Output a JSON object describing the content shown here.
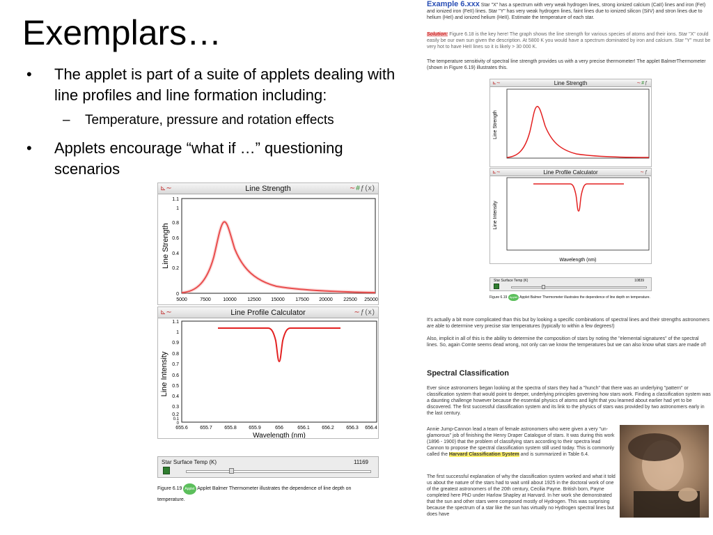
{
  "slide": {
    "title": "Exemplars…",
    "bullets": [
      "The applet is part of a suite of applets dealing with line profiles and line formation including:",
      "Applets encourage “what if …” questioning scenarios"
    ],
    "sub_bullet": "Temperature, pressure and rotation effects"
  },
  "applet_large": {
    "line_strength": {
      "title": "Line Strength",
      "ylabel": "Line Strength",
      "yticks": [
        "1.1",
        "1",
        "0.8",
        "0.6",
        "0.4",
        "0.2",
        "0"
      ],
      "xticks": [
        "5000",
        "7500",
        "10000",
        "12500",
        "15000",
        "17500",
        "20000",
        "22500",
        "25000"
      ]
    },
    "line_profile": {
      "title": "Line Profile Calculator",
      "ylabel": "Line Intensity",
      "xlabel": "Wavelength (nm)",
      "yticks": [
        "1.1",
        "1",
        "0.9",
        "0.8",
        "0.7",
        "0.6",
        "0.5",
        "0.4",
        "0.3",
        "0.2",
        "0.1",
        "0"
      ],
      "xticks": [
        "655.6",
        "655.7",
        "655.8",
        "655.9",
        "656",
        "656.1",
        "656.2",
        "656.3",
        "656.4"
      ]
    },
    "slider": {
      "label": "Star Surface Temp (K)",
      "value": "11169",
      "level": 0.26
    },
    "caption": {
      "prefix": "Figure 6.19",
      "badge": "Applet",
      "text": "Applet Balmer Thermometer illustrates the dependence of line depth on temperature."
    }
  },
  "applet_small": {
    "line_strength": {
      "title": "Line Strength",
      "ylabel": "Line Strength"
    },
    "line_profile": {
      "title": "Line Profile Calculator",
      "ylabel": "Line Intensity",
      "xlabel": "Wavelength (nm)"
    },
    "slider": {
      "label": "Star Surface Temp (K)",
      "value": "10839",
      "level": 0.24
    },
    "caption": {
      "prefix": "Figure 6.19",
      "badge": "Applet",
      "text": "Applet Balmer Thermometer illustrates the dependence of line depth on temperature."
    }
  },
  "document": {
    "example_title": "Example 6.xxx",
    "example_text": "Star \"X\" has a spectrum with very weak hydrogen lines, strong ionized calcium (CaII) lines and iron (FeI) and ionized iron (FeII) lines. Star \"Y\" has very weak hydrogen lines, faint lines due to ionized silicon (SiIV) and stron lines due to helium (HeI) and ionized helium (HeII). Estimate the temperature of each star.",
    "solution_label": "Solution:",
    "solution_text": "Figure 6.18 is the key here! The graph shows the line strength for various species of atoms and their ions. Star \"X\" could easily be our own sun given the description. At 5800 K you would have a spectrum dominated by iron and calcium. Star \"Y\" must be very hot to have HeII lines so it is likely > 30 000 K.",
    "intro_text": "The temperature sensitivity of spectral line strength provides us with a very precise thermometer! The applet BalmerThermometer (shown in Figure 6.19) illustrates this.",
    "para1": "It's actually a bit more complicated than this but by looking a specific combinations of spectral lines and their strengths astronomers are able to determine very precise star temperatures (typically to within a few degrees!)",
    "para2": "Also, implicit in all of this is the ability to determine the composition of stars by noting the \"elemental signatures\" of the spectral lines. So, again Comte seems dead wrong, not only can we know the temperatures but we can also know what stars are made of!",
    "section_title": "Spectral Classification",
    "para3": "Ever since astronomers began looking at the spectra of stars they had a \"hunch\" that there was an underlying \"pattern\" or classification system that would point to deeper, underlying principles governing how stars work. Finding a classification system was a daunting challenge however because the essential physics of atoms and light that you learned about earlier had yet to be discovered. The first successful classification system and its link to the physics of stars was provided by two astronomers early in the last century.",
    "para4_before": "Annie Jump-Cannon lead a team of female astronomers who were given a very \"un-glamorous\" job of finishing the Henry Draper Catalogue of stars. It was during this work (1896 - 1900) that the problem of classifying stars according to their spectra lead Cannon to propose the spectral classification system still used today. This is commonly called the ",
    "para4_highlight": "Harvard Classification System",
    "para4_after": " and is summarized in Table 6.4.",
    "para5": "The first successful explanation of why the classification system worked and what it told us about the nature of the stars had to wait until about 1925 in the doctoral work of one of the greatest astronomers of the 20th century, Cecilia Payne. British born, Payne completed here PhD under Harlow Shapley at Harvard. In her work she demonstrated that the sun and other stars were composed mostly of Hydrogen. This was surprising because the spectrum of a star like the sun has virtually no Hydrogen spectral lines but does have"
  }
}
